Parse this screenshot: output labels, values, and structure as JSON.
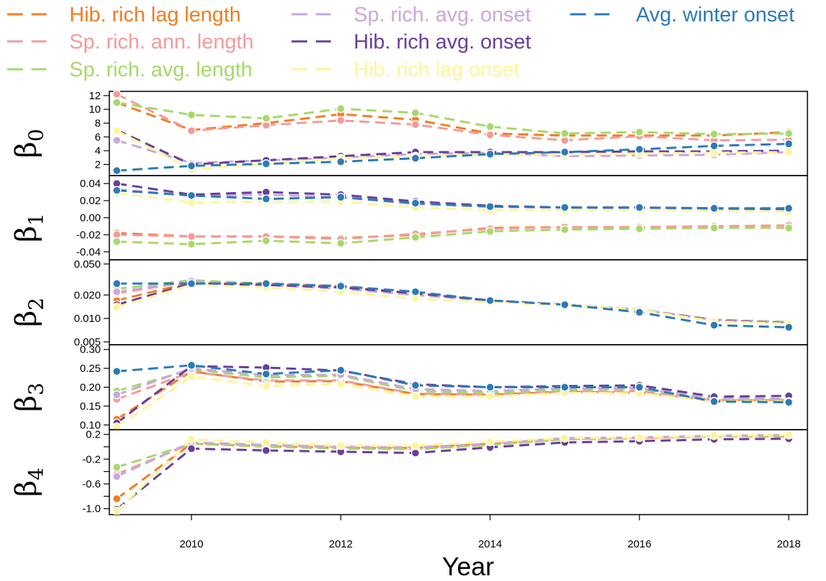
{
  "chart_data": {
    "type": "line",
    "x": [
      2009,
      2010,
      2011,
      2012,
      2013,
      2014,
      2015,
      2016,
      2017,
      2018
    ],
    "xlabel": "Year",
    "x_ticks": [
      "2010",
      "2012",
      "2014",
      "2016",
      "2018"
    ],
    "legend_position": "top",
    "grid": false,
    "series_meta": [
      {
        "name": "Hib. rich lag length",
        "color": "#f47c21"
      },
      {
        "name": "Sp. rich. ann. length",
        "color": "#f59a9a"
      },
      {
        "name": "Sp. rich. avg. length",
        "color": "#a6d96a"
      },
      {
        "name": "Sp. rich. avg. onset",
        "color": "#c9a8d8"
      },
      {
        "name": "Hib. rich avg. onset",
        "color": "#6a3d9a"
      },
      {
        "name": "Hib. rich lag onset",
        "color": "#fff59a"
      },
      {
        "name": "Avg. winter onset",
        "color": "#2c7bb6"
      }
    ],
    "panels": [
      {
        "id": "b0",
        "ylabel_main": "β",
        "ylabel_sub": "0",
        "ylim": [
          0.8,
          12.2
        ],
        "scale": "linear",
        "y_ticks": [
          2,
          4,
          6,
          8,
          10,
          12
        ],
        "y_tick_labels": [
          "2",
          "4",
          "6",
          "8",
          "10",
          "12"
        ],
        "series": [
          {
            "name": "Hib. rich lag length",
            "values": [
              11.0,
              7.0,
              8.0,
              9.3,
              8.5,
              6.5,
              6.2,
              6.2,
              6.2,
              6.7
            ]
          },
          {
            "name": "Sp. rich. ann. length",
            "values": [
              12.2,
              6.9,
              7.7,
              8.4,
              7.8,
              6.3,
              5.5,
              6.1,
              5.5,
              5.6
            ]
          },
          {
            "name": "Sp. rich. avg. length",
            "values": [
              11.0,
              9.2,
              8.7,
              10.1,
              9.5,
              7.5,
              6.5,
              6.7,
              6.4,
              6.5
            ]
          },
          {
            "name": "Sp. rich. avg. onset",
            "values": [
              5.5,
              2.2,
              2.6,
              3.0,
              3.5,
              3.7,
              3.2,
              3.3,
              3.4,
              3.8
            ]
          },
          {
            "name": "Hib. rich avg. onset",
            "values": [
              7.0,
              2.0,
              2.6,
              3.2,
              3.8,
              3.8,
              3.8,
              3.9,
              3.9,
              4.0
            ]
          },
          {
            "name": "Hib. rich lag onset",
            "values": [
              6.9,
              1.3,
              2.1,
              2.9,
              3.2,
              3.5,
              3.4,
              3.6,
              3.7,
              3.8
            ]
          },
          {
            "name": "Avg. winter onset",
            "values": [
              1.1,
              1.8,
              2.1,
              2.4,
              2.9,
              3.5,
              3.8,
              4.2,
              4.7,
              5.0
            ]
          }
        ]
      },
      {
        "id": "b1",
        "ylabel_main": "β",
        "ylabel_sub": "1",
        "ylim": [
          -0.046,
          0.046
        ],
        "scale": "linear",
        "y_ticks": [
          -0.04,
          -0.02,
          0.0,
          0.02,
          0.04
        ],
        "y_tick_labels": [
          "-0.04",
          "-0.02",
          "0.00",
          "0.02",
          "0.04"
        ],
        "series": [
          {
            "name": "Hib. rich lag length",
            "values": [
              -0.018,
              -0.022,
              -0.022,
              -0.024,
              -0.02,
              -0.012,
              -0.011,
              -0.011,
              -0.01,
              -0.009
            ]
          },
          {
            "name": "Sp. rich. ann. length",
            "values": [
              -0.02,
              -0.022,
              -0.022,
              -0.025,
              -0.019,
              -0.013,
              -0.011,
              -0.011,
              -0.01,
              -0.009
            ]
          },
          {
            "name": "Sp. rich. avg. length",
            "values": [
              -0.028,
              -0.031,
              -0.027,
              -0.03,
              -0.023,
              -0.016,
              -0.014,
              -0.013,
              -0.012,
              -0.012
            ]
          },
          {
            "name": "Sp. rich. avg. onset",
            "values": [
              0.033,
              0.026,
              0.027,
              0.024,
              0.016,
              0.013,
              0.012,
              0.011,
              0.01,
              0.01
            ]
          },
          {
            "name": "Hib. rich avg. onset",
            "values": [
              0.04,
              0.027,
              0.03,
              0.027,
              0.019,
              0.014,
              0.012,
              0.012,
              0.011,
              0.01
            ]
          },
          {
            "name": "Hib. rich lag onset",
            "values": [
              0.029,
              0.018,
              0.019,
              0.019,
              0.012,
              0.009,
              0.009,
              0.009,
              0.008,
              0.007
            ]
          },
          {
            "name": "Avg. winter onset",
            "values": [
              0.032,
              0.026,
              0.022,
              0.024,
              0.017,
              0.013,
              0.012,
              0.012,
              0.011,
              0.011
            ]
          }
        ]
      },
      {
        "id": "b2",
        "ylabel_main": "β",
        "ylabel_sub": "2",
        "ylim": [
          0.005,
          0.052
        ],
        "scale": "log",
        "y_ticks": [
          0.005,
          0.01,
          0.02,
          0.05
        ],
        "y_tick_labels": [
          "0.005",
          "0.010",
          "0.020",
          "0.050"
        ],
        "series": [
          {
            "name": "Hib. rich lag length",
            "values": [
              0.017,
              0.029,
              0.028,
              0.026,
              0.021,
              0.017,
              0.015,
              0.013,
              0.0095,
              0.0088
            ]
          },
          {
            "name": "Sp. rich. ann. length",
            "values": [
              0.021,
              0.03,
              0.028,
              0.025,
              0.02,
              0.017,
              0.015,
              0.013,
              0.0096,
              0.0089
            ]
          },
          {
            "name": "Sp. rich. avg. length",
            "values": [
              0.024,
              0.031,
              0.028,
              0.025,
              0.02,
              0.017,
              0.015,
              0.013,
              0.0097,
              0.009
            ]
          },
          {
            "name": "Sp. rich. avg. onset",
            "values": [
              0.022,
              0.03,
              0.027,
              0.024,
              0.02,
              0.017,
              0.015,
              0.013,
              0.0096,
              0.0089
            ]
          },
          {
            "name": "Hib. rich avg. onset",
            "values": [
              0.015,
              0.028,
              0.027,
              0.025,
              0.021,
              0.017,
              0.015,
              0.013,
              0.0094,
              0.0087
            ]
          },
          {
            "name": "Hib. rich lag onset",
            "values": [
              0.014,
              0.027,
              0.025,
              0.022,
              0.018,
              0.016,
              0.015,
              0.013,
              0.0092,
              0.0086
            ]
          },
          {
            "name": "Avg. winter onset",
            "values": [
              0.028,
              0.028,
              0.028,
              0.026,
              0.022,
              0.017,
              0.015,
              0.012,
              0.0082,
              0.0077
            ]
          }
        ]
      },
      {
        "id": "b3",
        "ylabel_main": "β",
        "ylabel_sub": "3",
        "ylim": [
          0.095,
          0.305
        ],
        "scale": "linear",
        "y_ticks": [
          0.1,
          0.15,
          0.2,
          0.25,
          0.3
        ],
        "y_tick_labels": [
          "0.10",
          "0.15",
          "0.20",
          "0.25",
          "0.30"
        ],
        "series": [
          {
            "name": "Hib. rich lag length",
            "values": [
              0.115,
              0.242,
              0.215,
              0.216,
              0.182,
              0.18,
              0.188,
              0.185,
              0.165,
              0.165
            ]
          },
          {
            "name": "Sp. rich. ann. length",
            "values": [
              0.168,
              0.24,
              0.218,
              0.218,
              0.183,
              0.181,
              0.189,
              0.19,
              0.166,
              0.166
            ]
          },
          {
            "name": "Sp. rich. avg. length",
            "values": [
              0.19,
              0.247,
              0.226,
              0.23,
              0.19,
              0.185,
              0.193,
              0.195,
              0.168,
              0.168
            ]
          },
          {
            "name": "Sp. rich. avg. onset",
            "values": [
              0.18,
              0.25,
              0.232,
              0.233,
              0.195,
              0.19,
              0.197,
              0.198,
              0.17,
              0.17
            ]
          },
          {
            "name": "Hib. rich avg. onset",
            "values": [
              0.105,
              0.256,
              0.252,
              0.244,
              0.208,
              0.2,
              0.203,
              0.205,
              0.175,
              0.177
            ]
          },
          {
            "name": "Hib. rich lag onset",
            "values": [
              0.095,
              0.228,
              0.203,
              0.208,
              0.176,
              0.176,
              0.185,
              0.184,
              0.163,
              0.162
            ]
          },
          {
            "name": "Avg. winter onset",
            "values": [
              0.242,
              0.258,
              0.235,
              0.245,
              0.205,
              0.2,
              0.2,
              0.2,
              0.162,
              0.16
            ]
          }
        ]
      },
      {
        "id": "b4",
        "ylabel_main": "β",
        "ylabel_sub": "4",
        "ylim": [
          -1.05,
          0.23
        ],
        "scale": "linear",
        "y_ticks": [
          -1.0,
          -0.8,
          -0.6,
          -0.4,
          -0.2,
          0.0,
          0.2
        ],
        "y_tick_labels": [
          "-1.0",
          "",
          "-0.6",
          "",
          "-0.2",
          "",
          "0.2"
        ],
        "series": [
          {
            "name": "Hib. rich lag length",
            "values": [
              -0.84,
              0.05,
              0.01,
              -0.02,
              -0.02,
              0.05,
              0.12,
              0.14,
              0.17,
              0.17
            ]
          },
          {
            "name": "Sp. rich. ann. length",
            "values": [
              -0.44,
              0.05,
              0.02,
              -0.01,
              -0.04,
              0.03,
              0.12,
              0.14,
              0.17,
              0.18
            ]
          },
          {
            "name": "Sp. rich. avg. length",
            "values": [
              -0.33,
              0.05,
              0.0,
              -0.03,
              -0.04,
              0.03,
              0.12,
              0.15,
              0.17,
              0.18
            ]
          },
          {
            "name": "Sp. rich. avg. onset",
            "values": [
              -0.48,
              0.07,
              0.03,
              0.0,
              -0.01,
              0.05,
              0.14,
              0.15,
              0.18,
              0.19
            ]
          },
          {
            "name": "Hib. rich avg. onset",
            "values": [
              -1.01,
              -0.03,
              -0.06,
              -0.08,
              -0.1,
              -0.01,
              0.07,
              0.09,
              0.12,
              0.13
            ]
          },
          {
            "name": "Hib. rich lag onset",
            "values": [
              -1.04,
              0.12,
              0.07,
              0.02,
              0.02,
              0.08,
              0.14,
              0.15,
              0.18,
              0.19
            ]
          },
          {
            "name": "Avg. winter onset",
            "values": [
              null,
              null,
              null,
              null,
              null,
              null,
              null,
              null,
              null,
              null
            ]
          }
        ]
      }
    ]
  }
}
